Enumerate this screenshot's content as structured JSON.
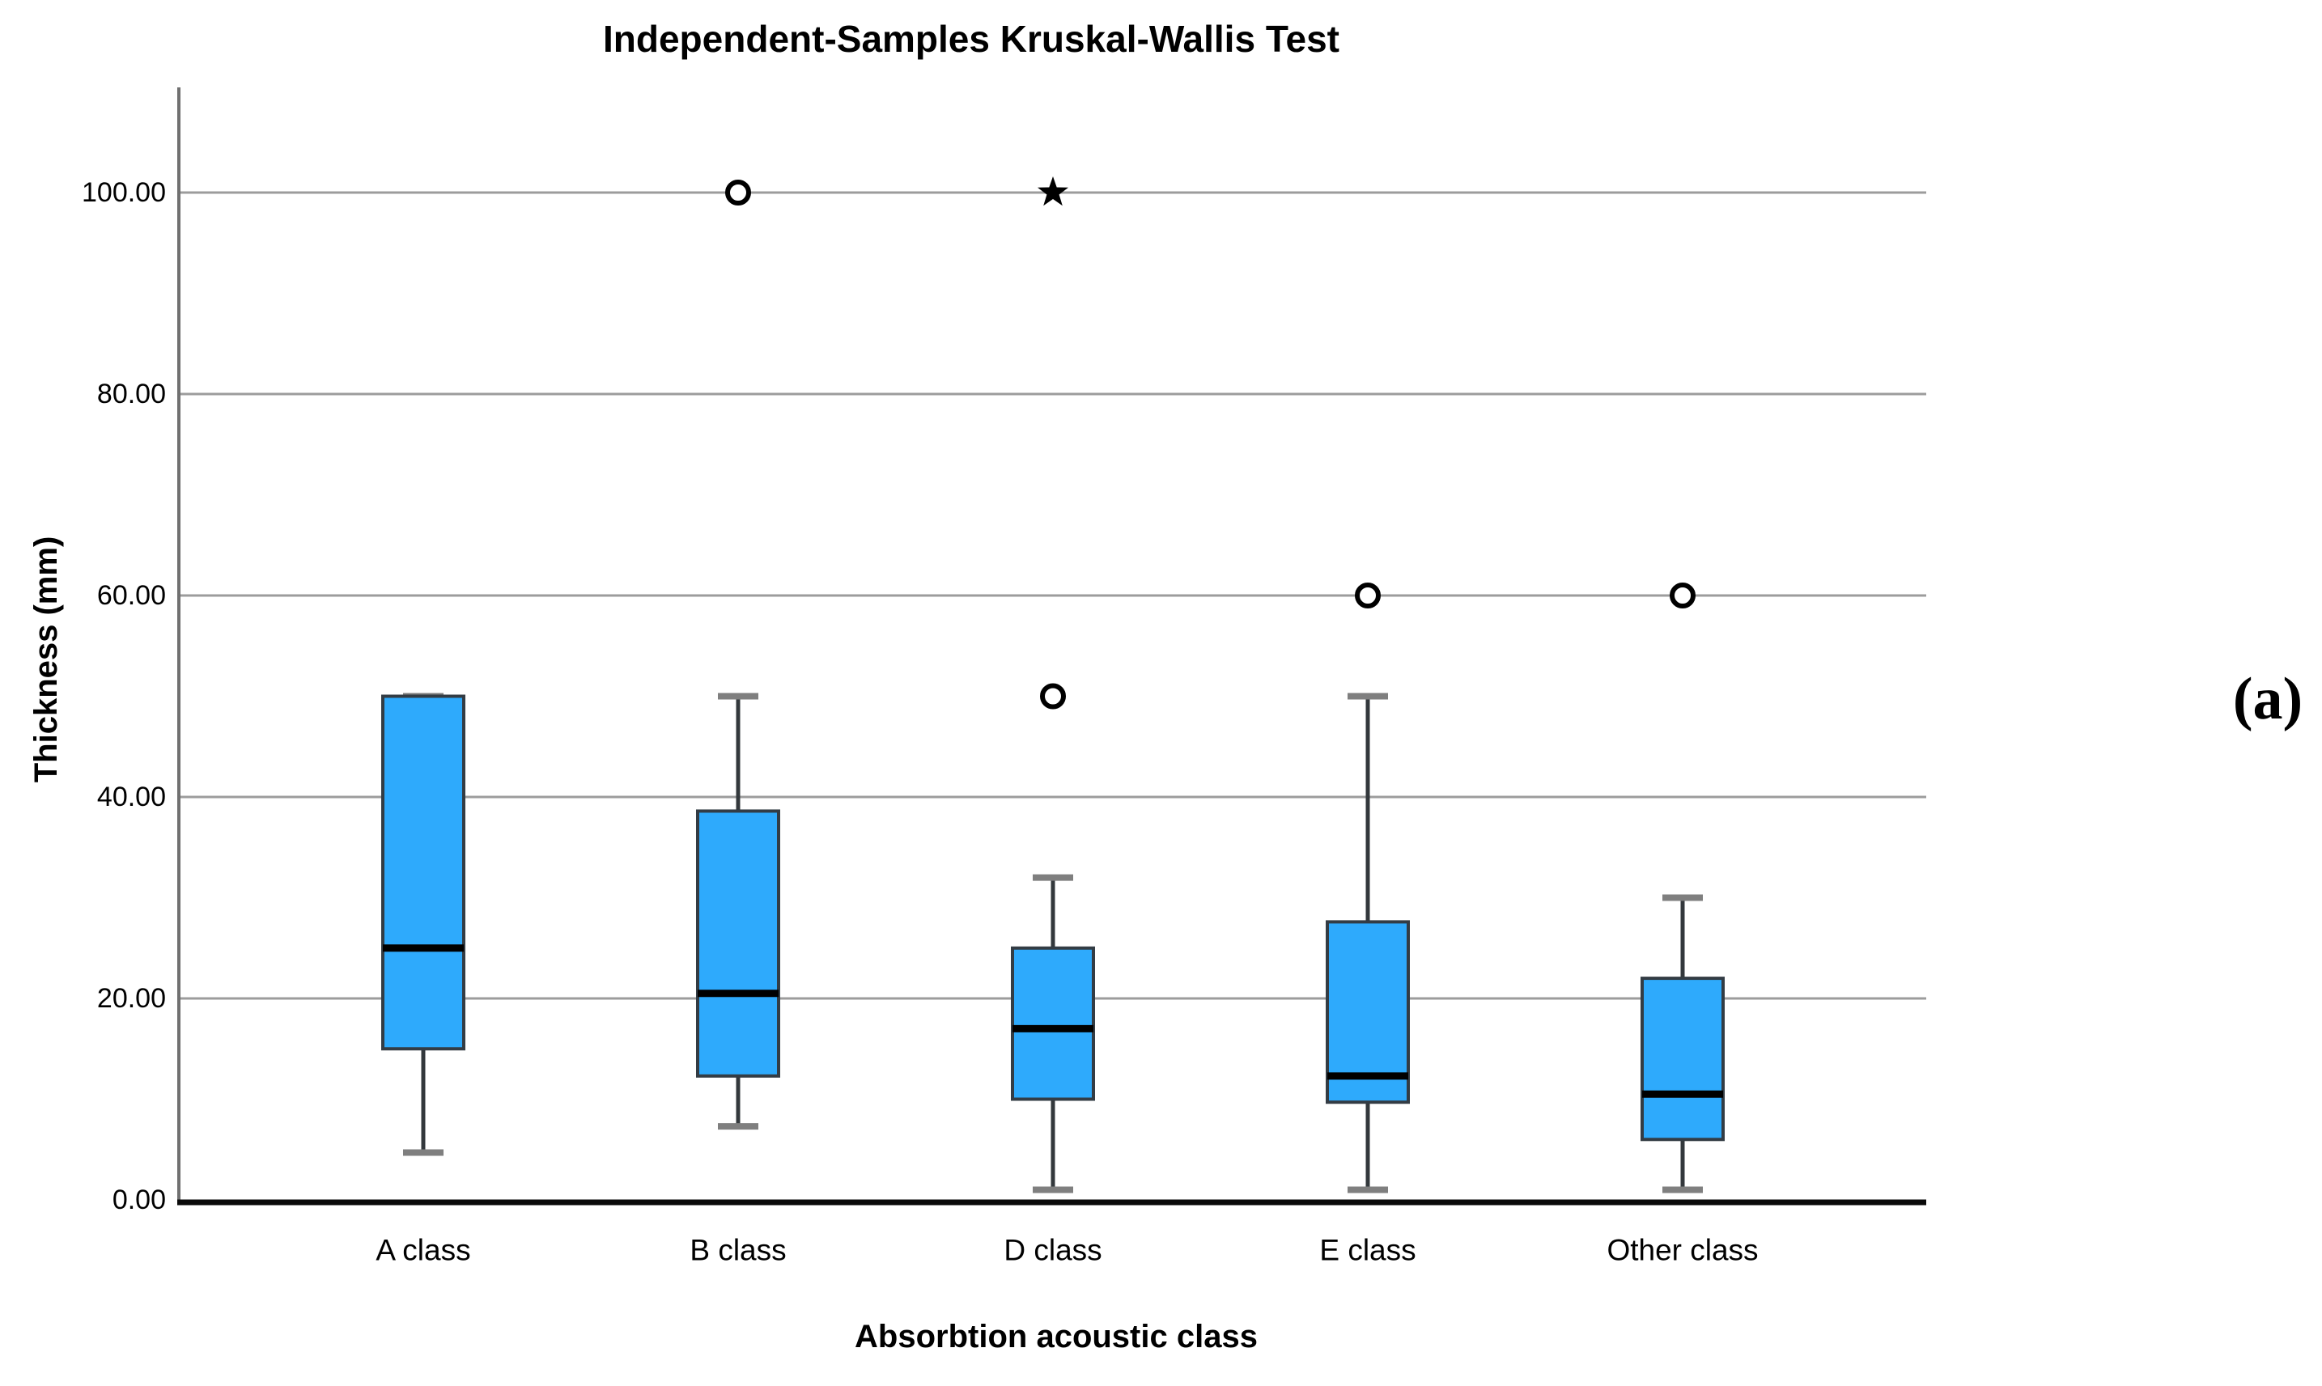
{
  "figure_label": "(a)",
  "chart_data": {
    "type": "boxplot",
    "title": "Independent-Samples Kruskal-Wallis Test",
    "xlabel": "Absorbtion acoustic class",
    "ylabel": "Thickness (mm)",
    "ylim": [
      0,
      110
    ],
    "grid": "horizontal-gray-lines",
    "legend": "none",
    "yticks": [
      {
        "value": 0,
        "label": "0.00"
      },
      {
        "value": 20,
        "label": "20.00"
      },
      {
        "value": 40,
        "label": "40.00"
      },
      {
        "value": 60,
        "label": "60.00"
      },
      {
        "value": 80,
        "label": "80.00"
      },
      {
        "value": 100,
        "label": "100.00"
      }
    ],
    "categories": [
      "A class",
      "B class",
      "D class",
      "E class",
      "Other class"
    ],
    "boxes": [
      {
        "category": "A class",
        "whisker_low": 4.7,
        "q1": 15,
        "median": 25,
        "q3": 50,
        "whisker_high": 50,
        "outliers": []
      },
      {
        "category": "B class",
        "whisker_low": 7.3,
        "q1": 12.3,
        "median": 20.5,
        "q3": 38.6,
        "whisker_high": 50,
        "outliers": [
          {
            "value": 100,
            "marker": "circle"
          }
        ]
      },
      {
        "category": "D class",
        "whisker_low": 1,
        "q1": 10,
        "median": 17,
        "q3": 25,
        "whisker_high": 32,
        "outliers": [
          {
            "value": 50,
            "marker": "circle"
          },
          {
            "value": 100,
            "marker": "star"
          }
        ]
      },
      {
        "category": "E class",
        "whisker_low": 1,
        "q1": 9.7,
        "median": 12.3,
        "q3": 27.6,
        "whisker_high": 50,
        "outliers": [
          {
            "value": 60,
            "marker": "circle"
          }
        ]
      },
      {
        "category": "Other class",
        "whisker_low": 1,
        "q1": 6,
        "median": 10.5,
        "q3": 22,
        "whisker_high": 30,
        "outliers": [
          {
            "value": 60,
            "marker": "circle"
          }
        ]
      }
    ],
    "colors": {
      "box_fill": "#2EAAFC",
      "box_border": "#333C44",
      "median": "#000000",
      "whisker": "#33383C",
      "whisker_cap": "#7F7F7F",
      "gridline": "#9C9C9C",
      "y_axis_line": "#707070",
      "x_axis_line": "#0A0A0A",
      "outlier": "#000000"
    }
  }
}
